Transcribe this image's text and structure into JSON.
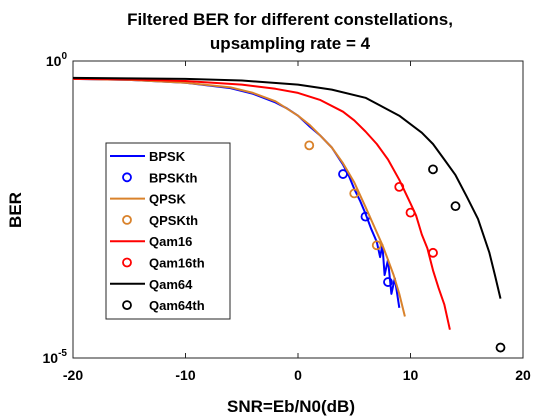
{
  "chart_data": {
    "type": "line",
    "title_lines": [
      "Filtered BER for different constellations,",
      "upsampling rate = 4"
    ],
    "xlabel": "SNR=Eb/N0(dB)",
    "ylabel": "BER",
    "xlim": [
      -20,
      20
    ],
    "ylim": [
      1e-05,
      1
    ],
    "yscale": "log",
    "xticks": [
      -20,
      -10,
      0,
      10,
      20
    ],
    "xtick_labels": [
      "-20",
      "-10",
      "0",
      "10",
      "20"
    ],
    "yticks": [
      1,
      1e-05
    ],
    "ytick_labels": [
      {
        "base": "10",
        "exp": "0"
      },
      {
        "base": "10",
        "exp": "-5"
      }
    ],
    "grid": false,
    "legend_position": "left-center",
    "series": [
      {
        "name": "BPSK",
        "style": "line",
        "color": "#0000ff",
        "x": [
          -20,
          -15,
          -10,
          -6,
          -4,
          -2,
          -1,
          0,
          1,
          2,
          3,
          4,
          4.5,
          5,
          5.5,
          6,
          6.5,
          7,
          7.3,
          7.5,
          7.7,
          8,
          8.3,
          8.6,
          9
        ],
        "y": [
          0.5,
          0.48,
          0.43,
          0.35,
          0.28,
          0.2,
          0.16,
          0.12,
          0.08,
          0.055,
          0.035,
          0.018,
          0.012,
          0.007,
          0.0045,
          0.0027,
          0.0015,
          0.0009,
          0.0005,
          0.0008,
          0.00025,
          0.00045,
          0.00012,
          0.00022,
          7e-05
        ]
      },
      {
        "name": "BPSKth",
        "style": "marker",
        "color": "#0000ff",
        "x": [
          4,
          6,
          8
        ],
        "y": [
          0.0125,
          0.0024,
          0.00019
        ]
      },
      {
        "name": "QPSK",
        "style": "line",
        "color": "#d9822b",
        "x": [
          -20,
          -15,
          -10,
          -6,
          -4,
          -2,
          0,
          1,
          2,
          3,
          4,
          5,
          6,
          7,
          7.5,
          8,
          8.5,
          9,
          9.5
        ],
        "y": [
          0.5,
          0.48,
          0.43,
          0.36,
          0.29,
          0.21,
          0.12,
          0.085,
          0.055,
          0.035,
          0.019,
          0.009,
          0.0035,
          0.0013,
          0.0008,
          0.00045,
          0.00025,
          0.00012,
          5e-05
        ]
      },
      {
        "name": "QPSKth",
        "style": "marker",
        "color": "#d9822b",
        "x": [
          1,
          5,
          7
        ],
        "y": [
          0.038,
          0.0059,
          0.00079
        ]
      },
      {
        "name": "Qam16",
        "style": "line",
        "color": "#ff0000",
        "x": [
          -20,
          -15,
          -10,
          -5,
          -2,
          0,
          2,
          4,
          5,
          6,
          7,
          8,
          9,
          10,
          10.5,
          11,
          11.5,
          12,
          12.5,
          13,
          13.5
        ],
        "y": [
          0.5,
          0.49,
          0.46,
          0.4,
          0.34,
          0.29,
          0.22,
          0.14,
          0.1,
          0.065,
          0.04,
          0.022,
          0.01,
          0.004,
          0.0025,
          0.0012,
          0.0007,
          0.0003,
          0.00015,
          8e-05,
          3e-05
        ]
      },
      {
        "name": "Qam16th",
        "style": "marker",
        "color": "#ff0000",
        "x": [
          9,
          10,
          12
        ],
        "y": [
          0.0076,
          0.0028,
          0.00059
        ]
      },
      {
        "name": "Qam64",
        "style": "line",
        "color": "#000000",
        "x": [
          -20,
          -15,
          -10,
          -5,
          0,
          3,
          6,
          9,
          11,
          12,
          13,
          14,
          15,
          16,
          17,
          17.5,
          18
        ],
        "y": [
          0.52,
          0.51,
          0.5,
          0.47,
          0.4,
          0.33,
          0.24,
          0.12,
          0.062,
          0.04,
          0.022,
          0.012,
          0.0052,
          0.0022,
          0.0006,
          0.00025,
          0.0001
        ]
      },
      {
        "name": "Qam64th",
        "style": "marker",
        "color": "#000000",
        "x": [
          12,
          14,
          18
        ],
        "y": [
          0.015,
          0.0036,
          1.5e-05
        ]
      }
    ]
  }
}
